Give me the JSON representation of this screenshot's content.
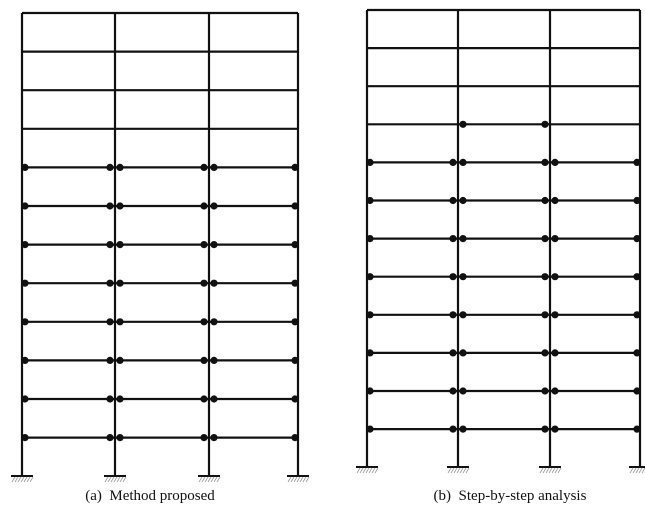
{
  "panels": [
    {
      "caption": "(a)  Method proposed"
    },
    {
      "caption": "(b)  Step-by-step analysis"
    }
  ]
}
